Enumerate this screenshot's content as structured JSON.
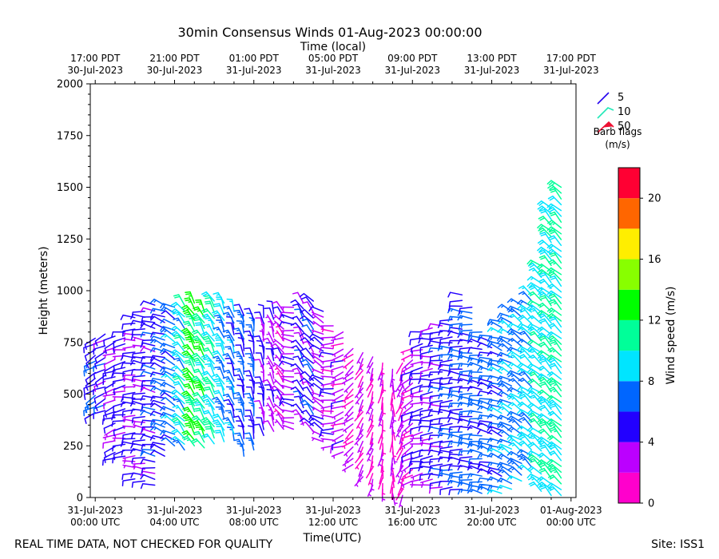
{
  "chart_data": {
    "type": "wind-barbs",
    "title": "30min Consensus Winds 01-Aug-2023 00:00:00",
    "top_axis_label": "Time (local)",
    "xlabel": "Time(UTC)",
    "ylabel": "Height (meters)",
    "ylim": [
      0,
      2000
    ],
    "y_ticks": [
      "0",
      "250",
      "500",
      "750",
      "1000",
      "1250",
      "1500",
      "1750",
      "2000"
    ],
    "x_range_hours": [
      -0.25,
      24.25
    ],
    "x_ticks_utc": [
      {
        "hour": 0,
        "line1": "31-Jul-2023",
        "line2": "00:00 UTC"
      },
      {
        "hour": 4,
        "line1": "31-Jul-2023",
        "line2": "04:00 UTC"
      },
      {
        "hour": 8,
        "line1": "31-Jul-2023",
        "line2": "08:00 UTC"
      },
      {
        "hour": 12,
        "line1": "31-Jul-2023",
        "line2": "12:00 UTC"
      },
      {
        "hour": 16,
        "line1": "31-Jul-2023",
        "line2": "16:00 UTC"
      },
      {
        "hour": 20,
        "line1": "31-Jul-2023",
        "line2": "20:00 UTC"
      },
      {
        "hour": 24,
        "line1": "01-Aug-2023",
        "line2": "00:00 UTC"
      }
    ],
    "x_ticks_local": [
      {
        "hour": 0,
        "line1": "17:00 PDT",
        "line2": "30-Jul-2023"
      },
      {
        "hour": 4,
        "line1": "21:00 PDT",
        "line2": "30-Jul-2023"
      },
      {
        "hour": 8,
        "line1": "01:00 PDT",
        "line2": "31-Jul-2023"
      },
      {
        "hour": 12,
        "line1": "05:00 PDT",
        "line2": "31-Jul-2023"
      },
      {
        "hour": 16,
        "line1": "09:00 PDT",
        "line2": "31-Jul-2023"
      },
      {
        "hour": 20,
        "line1": "13:00 PDT",
        "line2": "31-Jul-2023"
      },
      {
        "hour": 24,
        "line1": "17:00 PDT",
        "line2": "31-Jul-2023"
      }
    ],
    "barb_legend": {
      "items": [
        {
          "label": "5",
          "speed": 5,
          "color": "#2200ee"
        },
        {
          "label": "10",
          "speed": 10,
          "color": "#22e8b8"
        },
        {
          "label": "50",
          "speed": 50,
          "color": "#ee1133"
        }
      ],
      "caption_line1": "Barb flags",
      "caption_line2": "(m/s)"
    },
    "colorbar": {
      "label": "Wind speed (m/s)",
      "min": 0,
      "max": 22,
      "ticks": [
        "0",
        "4",
        "8",
        "12",
        "16",
        "20"
      ],
      "bands": [
        {
          "from": 0,
          "to": 2,
          "color": "#ff00cc"
        },
        {
          "from": 2,
          "to": 4,
          "color": "#bb00ff"
        },
        {
          "from": 4,
          "to": 6,
          "color": "#2200ff"
        },
        {
          "from": 6,
          "to": 8,
          "color": "#0066ff"
        },
        {
          "from": 8,
          "to": 10,
          "color": "#00e5ff"
        },
        {
          "from": 10,
          "to": 12,
          "color": "#00ff99"
        },
        {
          "from": 12,
          "to": 14,
          "color": "#00ff00"
        },
        {
          "from": 14,
          "to": 16,
          "color": "#88ff00"
        },
        {
          "from": 16,
          "to": 18,
          "color": "#ffee00"
        },
        {
          "from": 18,
          "to": 20,
          "color": "#ff6600"
        },
        {
          "from": 20,
          "to": 22,
          "color": "#ff0033"
        }
      ]
    },
    "profiles": [
      {
        "hour": 0.0,
        "bottom": 410,
        "top": 770,
        "speed": 5.5,
        "dir": 240
      },
      {
        "hour": 0.5,
        "bottom": 420,
        "top": 790,
        "speed": 5.0,
        "dir": 245
      },
      {
        "hour": 1.0,
        "bottom": 190,
        "top": 780,
        "speed": 4.5,
        "dir": 250
      },
      {
        "hour": 1.5,
        "bottom": 200,
        "top": 800,
        "speed": 4.5,
        "dir": 260
      },
      {
        "hour": 2.0,
        "bottom": 90,
        "top": 870,
        "speed": 4.0,
        "dir": 270
      },
      {
        "hour": 2.5,
        "bottom": 80,
        "top": 900,
        "speed": 4.5,
        "dir": 275
      },
      {
        "hour": 3.0,
        "bottom": 60,
        "top": 930,
        "speed": 5.0,
        "dir": 280
      },
      {
        "hour": 3.5,
        "bottom": 200,
        "top": 930,
        "speed": 5.5,
        "dir": 290
      },
      {
        "hour": 4.0,
        "bottom": 250,
        "top": 920,
        "speed": 7.0,
        "dir": 300
      },
      {
        "hour": 4.5,
        "bottom": 230,
        "top": 930,
        "speed": 9.0,
        "dir": 320
      },
      {
        "hour": 5.0,
        "bottom": 250,
        "top": 940,
        "speed": 12.5,
        "dir": 330
      },
      {
        "hour": 5.5,
        "bottom": 240,
        "top": 900,
        "speed": 11.0,
        "dir": 330
      },
      {
        "hour": 6.0,
        "bottom": 260,
        "top": 950,
        "speed": 9.5,
        "dir": 330
      },
      {
        "hour": 6.5,
        "bottom": 270,
        "top": 940,
        "speed": 8.5,
        "dir": 335
      },
      {
        "hour": 7.0,
        "bottom": 280,
        "top": 900,
        "speed": 7.0,
        "dir": 340
      },
      {
        "hour": 7.5,
        "bottom": 200,
        "top": 880,
        "speed": 6.5,
        "dir": 345
      },
      {
        "hour": 8.0,
        "bottom": 230,
        "top": 860,
        "speed": 5.5,
        "dir": 350
      },
      {
        "hour": 8.5,
        "bottom": 300,
        "top": 870,
        "speed": 4.5,
        "dir": 350
      },
      {
        "hour": 9.0,
        "bottom": 320,
        "top": 890,
        "speed": 3.5,
        "dir": 340
      },
      {
        "hour": 9.5,
        "bottom": 330,
        "top": 900,
        "speed": 3.0,
        "dir": 320
      },
      {
        "hour": 10.0,
        "bottom": 330,
        "top": 920,
        "speed": 3.5,
        "dir": 280
      },
      {
        "hour": 10.5,
        "bottom": 350,
        "top": 940,
        "speed": 5.0,
        "dir": 330
      },
      {
        "hour": 11.0,
        "bottom": 320,
        "top": 950,
        "speed": 5.0,
        "dir": 320
      },
      {
        "hour": 11.5,
        "bottom": 270,
        "top": 900,
        "speed": 3.5,
        "dir": 300
      },
      {
        "hour": 12.0,
        "bottom": 250,
        "top": 830,
        "speed": 3.0,
        "dir": 270
      },
      {
        "hour": 12.5,
        "bottom": 220,
        "top": 800,
        "speed": 3.0,
        "dir": 250
      },
      {
        "hour": 13.0,
        "bottom": 160,
        "top": 720,
        "speed": 2.5,
        "dir": 230
      },
      {
        "hour": 13.5,
        "bottom": 100,
        "top": 700,
        "speed": 2.0,
        "dir": 210
      },
      {
        "hour": 14.0,
        "bottom": 60,
        "top": 680,
        "speed": 2.0,
        "dir": 200
      },
      {
        "hour": 14.5,
        "bottom": 40,
        "top": 650,
        "speed": 1.5,
        "dir": 190
      },
      {
        "hour": 15.0,
        "bottom": 20,
        "top": 620,
        "speed": 1.5,
        "dir": 180
      },
      {
        "hour": 15.5,
        "bottom": 10,
        "top": 650,
        "speed": 2.0,
        "dir": 200
      },
      {
        "hour": 16.0,
        "bottom": 80,
        "top": 720,
        "speed": 3.0,
        "dir": 240
      },
      {
        "hour": 16.5,
        "bottom": 60,
        "top": 800,
        "speed": 4.0,
        "dir": 260
      },
      {
        "hour": 17.0,
        "bottom": 60,
        "top": 820,
        "speed": 4.5,
        "dir": 265
      },
      {
        "hour": 17.5,
        "bottom": 50,
        "top": 830,
        "speed": 5.0,
        "dir": 270
      },
      {
        "hour": 18.0,
        "bottom": 50,
        "top": 860,
        "speed": 5.5,
        "dir": 270
      },
      {
        "hour": 18.5,
        "bottom": 40,
        "top": 980,
        "speed": 6.0,
        "dir": 275
      },
      {
        "hour": 19.0,
        "bottom": 30,
        "top": 920,
        "speed": 6.5,
        "dir": 275
      },
      {
        "hour": 19.5,
        "bottom": 20,
        "top": 800,
        "speed": 6.5,
        "dir": 280
      },
      {
        "hour": 20.0,
        "bottom": 30,
        "top": 780,
        "speed": 6.0,
        "dir": 285
      },
      {
        "hour": 20.5,
        "bottom": 20,
        "top": 850,
        "speed": 7.0,
        "dir": 290
      },
      {
        "hour": 21.0,
        "bottom": 40,
        "top": 900,
        "speed": 7.5,
        "dir": 300
      },
      {
        "hour": 21.5,
        "bottom": 80,
        "top": 930,
        "speed": 7.5,
        "dir": 305
      },
      {
        "hour": 22.0,
        "bottom": 120,
        "top": 980,
        "speed": 8.5,
        "dir": 310
      },
      {
        "hour": 22.5,
        "bottom": 30,
        "top": 1120,
        "speed": 9.5,
        "dir": 310
      },
      {
        "hour": 23.0,
        "bottom": 10,
        "top": 1400,
        "speed": 10.0,
        "dir": 315
      },
      {
        "hour": 23.5,
        "bottom": 10,
        "top": 1500,
        "speed": 10.5,
        "dir": 315
      }
    ]
  },
  "footer": {
    "disclaimer": "REAL TIME DATA, NOT CHECKED FOR QUALITY",
    "site": "Site: ISS1"
  }
}
